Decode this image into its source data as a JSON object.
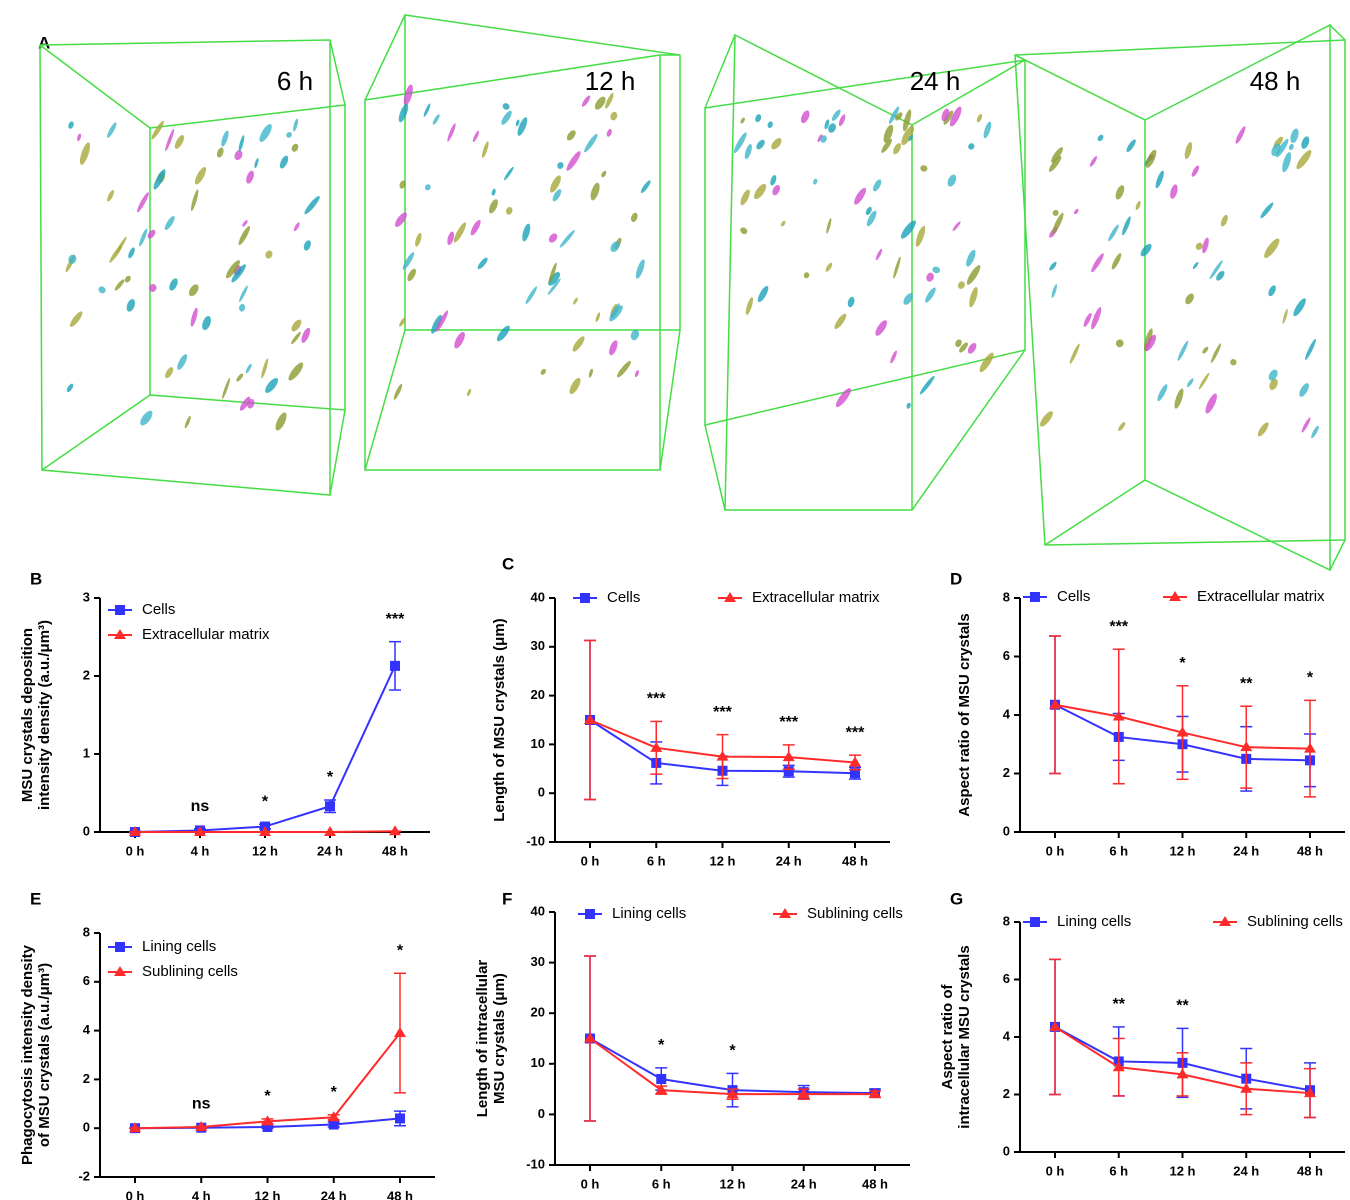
{
  "panel_a": {
    "label": "A",
    "timepoints": [
      "6 h",
      "12 h",
      "24 h",
      "48 h"
    ]
  },
  "chart_data": [
    {
      "type": "line",
      "panel": "B",
      "ylabel": [
        "MSU crystals deposition",
        "intensity density (a.u./μm³)"
      ],
      "categories": [
        "0 h",
        "4 h",
        "12 h",
        "24 h",
        "48 h"
      ],
      "ylim": [
        0,
        3
      ],
      "yticks": [
        0,
        1,
        2,
        3
      ],
      "series": [
        {
          "name": "Cells",
          "color": "#3333ff",
          "marker": "square",
          "values": [
            0,
            0.02,
            0.07,
            0.33,
            2.13
          ],
          "errors": [
            0.01,
            0.02,
            0.03,
            0.08,
            0.31
          ]
        },
        {
          "name": "Extracellular matrix",
          "color": "#ff2a2a",
          "marker": "triangle",
          "values": [
            0,
            0,
            0,
            0,
            0.01
          ],
          "errors": [
            0,
            0,
            0,
            0,
            0
          ]
        }
      ],
      "annotations": [
        null,
        "ns",
        "*",
        "*",
        "***"
      ]
    },
    {
      "type": "line",
      "panel": "C",
      "ylabel": [
        "Length of MSU crystals (μm)"
      ],
      "categories": [
        "0 h",
        "6 h",
        "12 h",
        "24 h",
        "48 h"
      ],
      "ylim": [
        -10,
        40
      ],
      "yticks": [
        -10,
        0,
        10,
        20,
        30,
        40
      ],
      "series": [
        {
          "name": "Cells",
          "color": "#3333ff",
          "marker": "square",
          "values": [
            15,
            6.2,
            4.6,
            4.5,
            4.1
          ],
          "errors": [
            16.3,
            4.3,
            3,
            1.2,
            1.2
          ]
        },
        {
          "name": "Extracellular matrix",
          "color": "#ff2a2a",
          "marker": "triangle",
          "values": [
            15,
            9.3,
            7.5,
            7.4,
            6.3
          ],
          "errors": [
            16.3,
            5.4,
            4.5,
            2.5,
            1.5
          ]
        }
      ],
      "annotations": [
        null,
        "***",
        "***",
        "***",
        "***"
      ]
    },
    {
      "type": "line",
      "panel": "D",
      "ylabel": [
        "Aspect ratio of MSU crystals"
      ],
      "categories": [
        "0 h",
        "6 h",
        "12 h",
        "24 h",
        "48 h"
      ],
      "ylim": [
        0,
        8
      ],
      "yticks": [
        0,
        2,
        4,
        6,
        8
      ],
      "series": [
        {
          "name": "Cells",
          "color": "#3333ff",
          "marker": "square",
          "values": [
            4.35,
            3.25,
            3.0,
            2.5,
            2.45
          ],
          "errors": [
            2.35,
            0.8,
            0.95,
            1.1,
            0.9
          ]
        },
        {
          "name": "Extracellular matrix",
          "color": "#ff2a2a",
          "marker": "triangle",
          "values": [
            4.35,
            3.95,
            3.4,
            2.9,
            2.85
          ],
          "errors": [
            2.35,
            2.3,
            1.6,
            1.4,
            1.65
          ]
        }
      ],
      "annotations": [
        null,
        "***",
        "*",
        "**",
        "*"
      ]
    },
    {
      "type": "line",
      "panel": "E",
      "ylabel": [
        "Phagocytosis intensity density",
        "of MSU crystals (a.u./μm³)"
      ],
      "categories": [
        "0 h",
        "4 h",
        "12 h",
        "24 h",
        "48 h"
      ],
      "ylim": [
        -2,
        8
      ],
      "yticks": [
        -2,
        0,
        2,
        4,
        6,
        8
      ],
      "series": [
        {
          "name": "Lining cells",
          "color": "#3333ff",
          "marker": "square",
          "values": [
            0,
            0.02,
            0.05,
            0.15,
            0.4
          ],
          "errors": [
            0,
            0.02,
            0.05,
            0.1,
            0.3
          ]
        },
        {
          "name": "Sublining cells",
          "color": "#ff2a2a",
          "marker": "triangle",
          "values": [
            0,
            0.05,
            0.28,
            0.45,
            3.9
          ],
          "errors": [
            0,
            0.03,
            0.1,
            0.1,
            2.45
          ]
        }
      ],
      "annotations": [
        null,
        "ns",
        "*",
        "*",
        "*"
      ]
    },
    {
      "type": "line",
      "panel": "F",
      "ylabel": [
        "Length of intracellular",
        "MSU crystals (μm)"
      ],
      "categories": [
        "0 h",
        "6 h",
        "12 h",
        "24 h",
        "48 h"
      ],
      "ylim": [
        -10,
        40
      ],
      "yticks": [
        -10,
        0,
        10,
        20,
        30,
        40
      ],
      "series": [
        {
          "name": "Lining cells",
          "color": "#3333ff",
          "marker": "square",
          "values": [
            15,
            7,
            4.8,
            4.4,
            4.2
          ],
          "errors": [
            16.3,
            2.2,
            3.3,
            1.3,
            0.8
          ]
        },
        {
          "name": "Sublining cells",
          "color": "#ff2a2a",
          "marker": "triangle",
          "values": [
            15,
            4.8,
            4,
            4,
            4
          ],
          "errors": [
            16.3,
            0.8,
            1,
            1,
            0.6
          ]
        }
      ],
      "annotations": [
        null,
        "*",
        "*",
        null,
        null
      ]
    },
    {
      "type": "line",
      "panel": "G",
      "ylabel": [
        "Aspect ratio of",
        "intracellular MSU crystals"
      ],
      "categories": [
        "0 h",
        "6 h",
        "12 h",
        "24 h",
        "48 h"
      ],
      "ylim": [
        0,
        8
      ],
      "yticks": [
        0,
        2,
        4,
        6,
        8
      ],
      "series": [
        {
          "name": "Lining cells",
          "color": "#3333ff",
          "marker": "square",
          "values": [
            4.35,
            3.15,
            3.1,
            2.55,
            2.15
          ],
          "errors": [
            2.35,
            1.2,
            1.2,
            1.05,
            0.95
          ]
        },
        {
          "name": "Sublining cells",
          "color": "#ff2a2a",
          "marker": "triangle",
          "values": [
            4.35,
            2.95,
            2.7,
            2.2,
            2.05
          ],
          "errors": [
            2.35,
            1.0,
            0.75,
            0.9,
            0.85
          ]
        }
      ],
      "annotations": [
        null,
        "**",
        "**",
        null,
        null
      ]
    }
  ]
}
